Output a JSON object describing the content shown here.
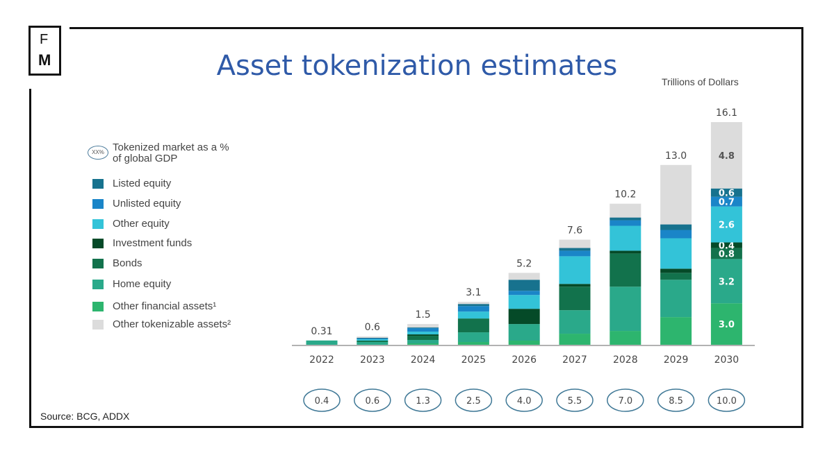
{
  "logo": {
    "top": "F",
    "bottom": "M"
  },
  "title": "Asset tokenization estimates",
  "source": "Source: BCG, ADDX",
  "chart_data": {
    "type": "bar",
    "stacked": true,
    "title": "Asset tokenization estimates",
    "ylabel": "Trillions of Dollars",
    "ylim": [
      0,
      16.1
    ],
    "grid": false,
    "legend_placement": "left",
    "categories": [
      "2022",
      "2023",
      "2024",
      "2025",
      "2026",
      "2027",
      "2028",
      "2029",
      "2030"
    ],
    "totals": [
      "0.31",
      "0.6",
      "1.5",
      "3.1",
      "5.2",
      "7.6",
      "10.2",
      "13.0",
      "16.1"
    ],
    "gdp_legend": {
      "symbol": "XX%",
      "label_line1": "Tokenized market as a %",
      "label_line2": "of global GDP"
    },
    "gdp_percent": [
      "0.4",
      "0.6",
      "1.3",
      "2.5",
      "4.0",
      "5.5",
      "7.0",
      "8.5",
      "10.0"
    ],
    "series": [
      {
        "name": "Other financial assets¹",
        "color": "#2db56e",
        "values": [
          0,
          0,
          0.1,
          0.2,
          0.3,
          0.8,
          1.0,
          2.0,
          3.0
        ]
      },
      {
        "name": "Home equity",
        "color": "#2aa98a",
        "values": [
          0.31,
          0.2,
          0.25,
          0.7,
          1.2,
          1.7,
          3.2,
          2.7,
          3.2
        ]
      },
      {
        "name": "Bonds",
        "color": "#12724c",
        "values": [
          0,
          0.1,
          0.3,
          1.0,
          0,
          1.7,
          2.4,
          0.5,
          0.8
        ]
      },
      {
        "name": "Investment funds",
        "color": "#054a28",
        "values": [
          0,
          0,
          0.1,
          0,
          1.1,
          0.2,
          0.2,
          0.3,
          0.4
        ]
      },
      {
        "name": "Other equity",
        "color": "#33c3d8",
        "values": [
          0,
          0.1,
          0.2,
          0.5,
          1.0,
          2.0,
          1.8,
          2.2,
          2.6
        ]
      },
      {
        "name": "Unlisted equity",
        "color": "#1a85c8",
        "values": [
          0,
          0.05,
          0.25,
          0.4,
          0.3,
          0.4,
          0.4,
          0.6,
          0.7
        ]
      },
      {
        "name": "Listed equity",
        "color": "#17728e",
        "values": [
          0,
          0.05,
          0.05,
          0.15,
          0.8,
          0.2,
          0.2,
          0.4,
          0.6
        ]
      },
      {
        "name": "Other tokenizable assets²",
        "color": "#dcdcdc",
        "values": [
          0,
          0.1,
          0.25,
          0.15,
          0.5,
          0.6,
          1.0,
          4.3,
          4.8
        ]
      }
    ],
    "legend_order": [
      "Listed equity",
      "Unlisted equity",
      "Other equity",
      "Investment funds",
      "Bonds",
      "Home equity",
      "Other financial assets¹",
      "Other tokenizable assets²"
    ],
    "data_labels_2030": [
      "3.0",
      "3.2",
      "0.8",
      "0.4",
      "2.6",
      "0.7",
      "0.6",
      "4.8"
    ]
  }
}
